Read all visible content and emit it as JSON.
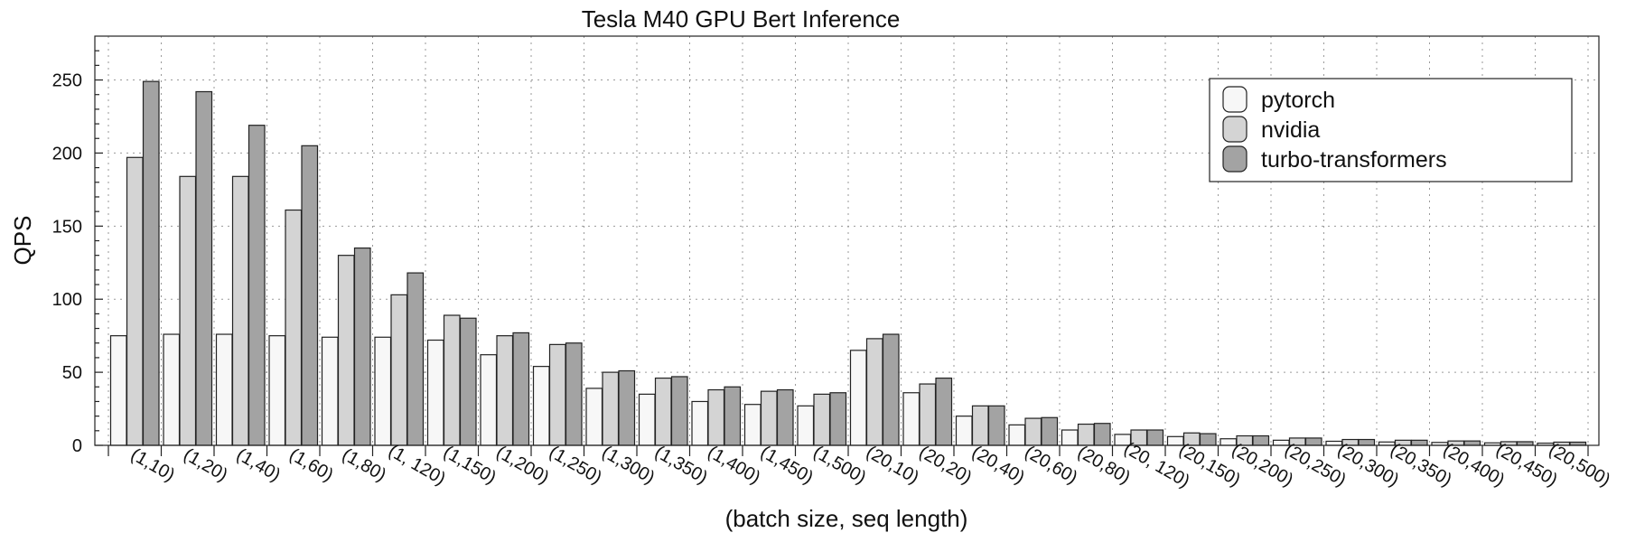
{
  "chart_data": {
    "type": "bar",
    "title": "Tesla M40 GPU Bert Inference",
    "xlabel": "(batch size, seq length)",
    "ylabel": "QPS",
    "ylim": [
      0,
      280
    ],
    "yticks": [
      0,
      50,
      100,
      150,
      200,
      250
    ],
    "grid": true,
    "legend_position": "top-right",
    "categories": [
      "(1,10)",
      "(1,20)",
      "(1,40)",
      "(1,60)",
      "(1,80)",
      "(1, 120)",
      "(1,150)",
      "(1,200)",
      "(1,250)",
      "(1,300)",
      "(1,350)",
      "(1,400)",
      "(1,450)",
      "(1,500)",
      "(20,10)",
      "(20,20)",
      "(20,40)",
      "(20,60)",
      "(20,80)",
      "(20, 120)",
      "(20,150)",
      "(20,200)",
      "(20,250)",
      "(20,300)",
      "(20,350)",
      "(20,400)",
      "(20,450)",
      "(20,500)"
    ],
    "series": [
      {
        "name": "pytorch",
        "color": "#f7f7f7",
        "values": [
          75,
          76,
          76,
          75,
          74,
          74,
          72,
          62,
          54,
          39,
          35,
          30,
          28,
          27,
          65,
          36,
          20,
          14,
          10.5,
          7.5,
          6,
          4.5,
          3.5,
          2.8,
          2.3,
          2,
          1.7,
          1.5
        ]
      },
      {
        "name": "nvidia",
        "color": "#d4d4d4",
        "values": [
          197,
          184,
          184,
          161,
          130,
          103,
          89,
          75,
          69,
          50,
          46,
          38,
          37,
          35,
          73,
          42,
          27,
          18.5,
          14.5,
          10.5,
          8.5,
          6.5,
          5,
          4,
          3.5,
          3,
          2.5,
          2.2
        ]
      },
      {
        "name": "turbo-transformers",
        "color": "#a3a3a3",
        "values": [
          249,
          242,
          219,
          205,
          135,
          118,
          87,
          77,
          70,
          51,
          47,
          40,
          38,
          36,
          76,
          46,
          27,
          19,
          15,
          10.5,
          8,
          6.5,
          5,
          4,
          3.5,
          3,
          2.5,
          2.2
        ]
      }
    ]
  }
}
